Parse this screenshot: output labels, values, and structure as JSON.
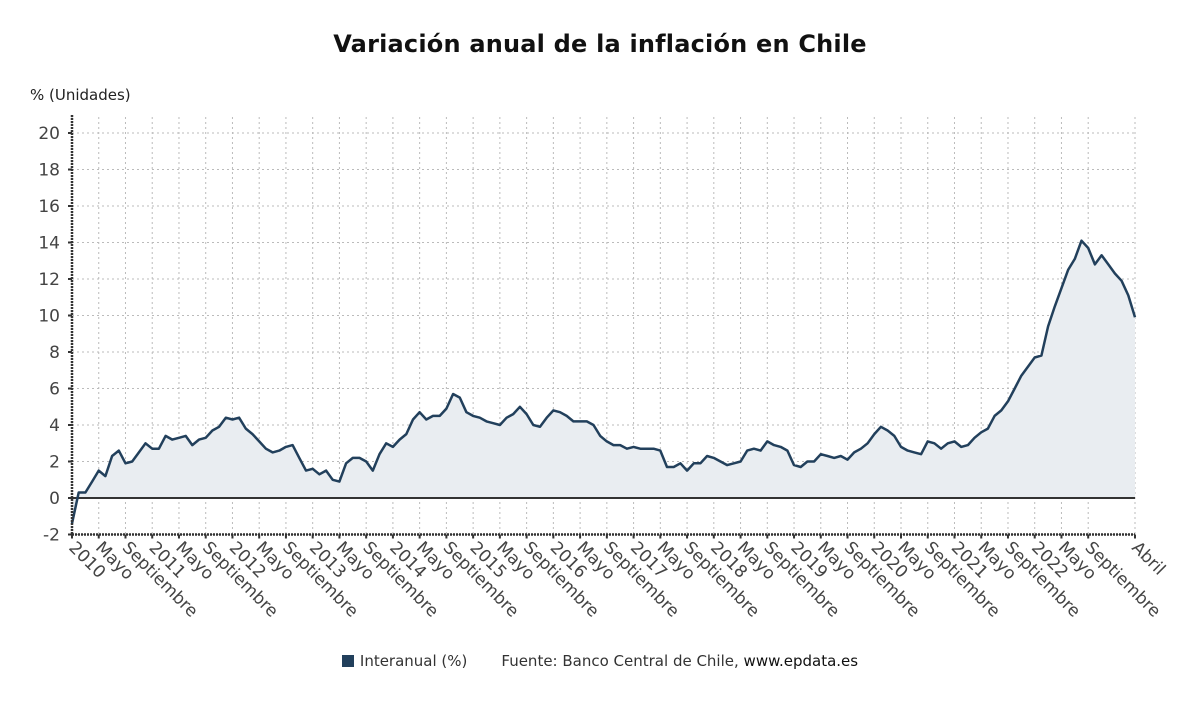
{
  "header": {
    "title": "Variación anual de la inflación en Chile",
    "y_unit_label": "% (Unidades)"
  },
  "legend": {
    "series_label": "Interanual (%)",
    "source_prefix": "Fuente: Banco Central de Chile, ",
    "source_url": "www.epdata.es"
  },
  "colors": {
    "line": "#22405c",
    "fill": "#e9edf1",
    "grid": "#bbbbbb",
    "zero_line": "#333333"
  },
  "chart_data": {
    "type": "area",
    "title": "Variación anual de la inflación en Chile",
    "xlabel": "",
    "ylabel": "% (Unidades)",
    "ylim": [
      -2,
      20
    ],
    "yticks": [
      -2,
      0,
      2,
      4,
      6,
      8,
      10,
      12,
      14,
      16,
      18,
      20
    ],
    "grid": true,
    "legend_position": "bottom-center",
    "x_start": "2010-01",
    "x_end": "2023-04",
    "xtick_labels": [
      "2010",
      "Mayo",
      "Septiembre",
      "2011",
      "Mayo",
      "Septiembre",
      "2012",
      "Mayo",
      "Septiembre",
      "2013",
      "Mayo",
      "Septiembre",
      "2014",
      "Mayo",
      "Septiembre",
      "2015",
      "Mayo",
      "Septiembre",
      "2016",
      "Mayo",
      "Septiembre",
      "2017",
      "Mayo",
      "Septiembre",
      "2018",
      "Mayo",
      "Septiembre",
      "2019",
      "Mayo",
      "Septiembre",
      "2020",
      "Mayo",
      "Septiembre",
      "2021",
      "Mayo",
      "Septiembre",
      "2022",
      "Mayo",
      "Septiembre",
      "Abril"
    ],
    "series": [
      {
        "name": "Interanual (%)",
        "values": [
          -1.4,
          0.3,
          0.3,
          0.9,
          1.5,
          1.2,
          2.3,
          2.6,
          1.9,
          2.0,
          2.5,
          3.0,
          2.7,
          2.7,
          3.4,
          3.2,
          3.3,
          3.4,
          2.9,
          3.2,
          3.3,
          3.7,
          3.9,
          4.4,
          4.3,
          4.4,
          3.8,
          3.5,
          3.1,
          2.7,
          2.5,
          2.6,
          2.8,
          2.9,
          2.2,
          1.5,
          1.6,
          1.3,
          1.5,
          1.0,
          0.9,
          1.9,
          2.2,
          2.2,
          2.0,
          1.5,
          2.4,
          3.0,
          2.8,
          3.2,
          3.5,
          4.3,
          4.7,
          4.3,
          4.5,
          4.5,
          4.9,
          5.7,
          5.5,
          4.7,
          4.5,
          4.4,
          4.2,
          4.1,
          4.0,
          4.4,
          4.6,
          5.0,
          4.6,
          4.0,
          3.9,
          4.4,
          4.8,
          4.7,
          4.5,
          4.2,
          4.2,
          4.2,
          4.0,
          3.4,
          3.1,
          2.9,
          2.9,
          2.7,
          2.8,
          2.7,
          2.7,
          2.7,
          2.6,
          1.7,
          1.7,
          1.9,
          1.5,
          1.9,
          1.9,
          2.3,
          2.2,
          2.0,
          1.8,
          1.9,
          2.0,
          2.6,
          2.7,
          2.6,
          3.1,
          2.9,
          2.8,
          2.6,
          1.8,
          1.7,
          2.0,
          2.0,
          2.4,
          2.3,
          2.2,
          2.3,
          2.1,
          2.5,
          2.7,
          3.0,
          3.5,
          3.9,
          3.7,
          3.4,
          2.8,
          2.6,
          2.5,
          2.4,
          3.1,
          3.0,
          2.7,
          3.0,
          3.1,
          2.8,
          2.9,
          3.3,
          3.6,
          3.8,
          4.5,
          4.8,
          5.3,
          6.0,
          6.7,
          7.2,
          7.7,
          7.8,
          9.4,
          10.5,
          11.5,
          12.5,
          13.1,
          14.1,
          13.7,
          12.8,
          13.3,
          12.8,
          12.3,
          11.9,
          11.1,
          9.9
        ]
      }
    ]
  }
}
